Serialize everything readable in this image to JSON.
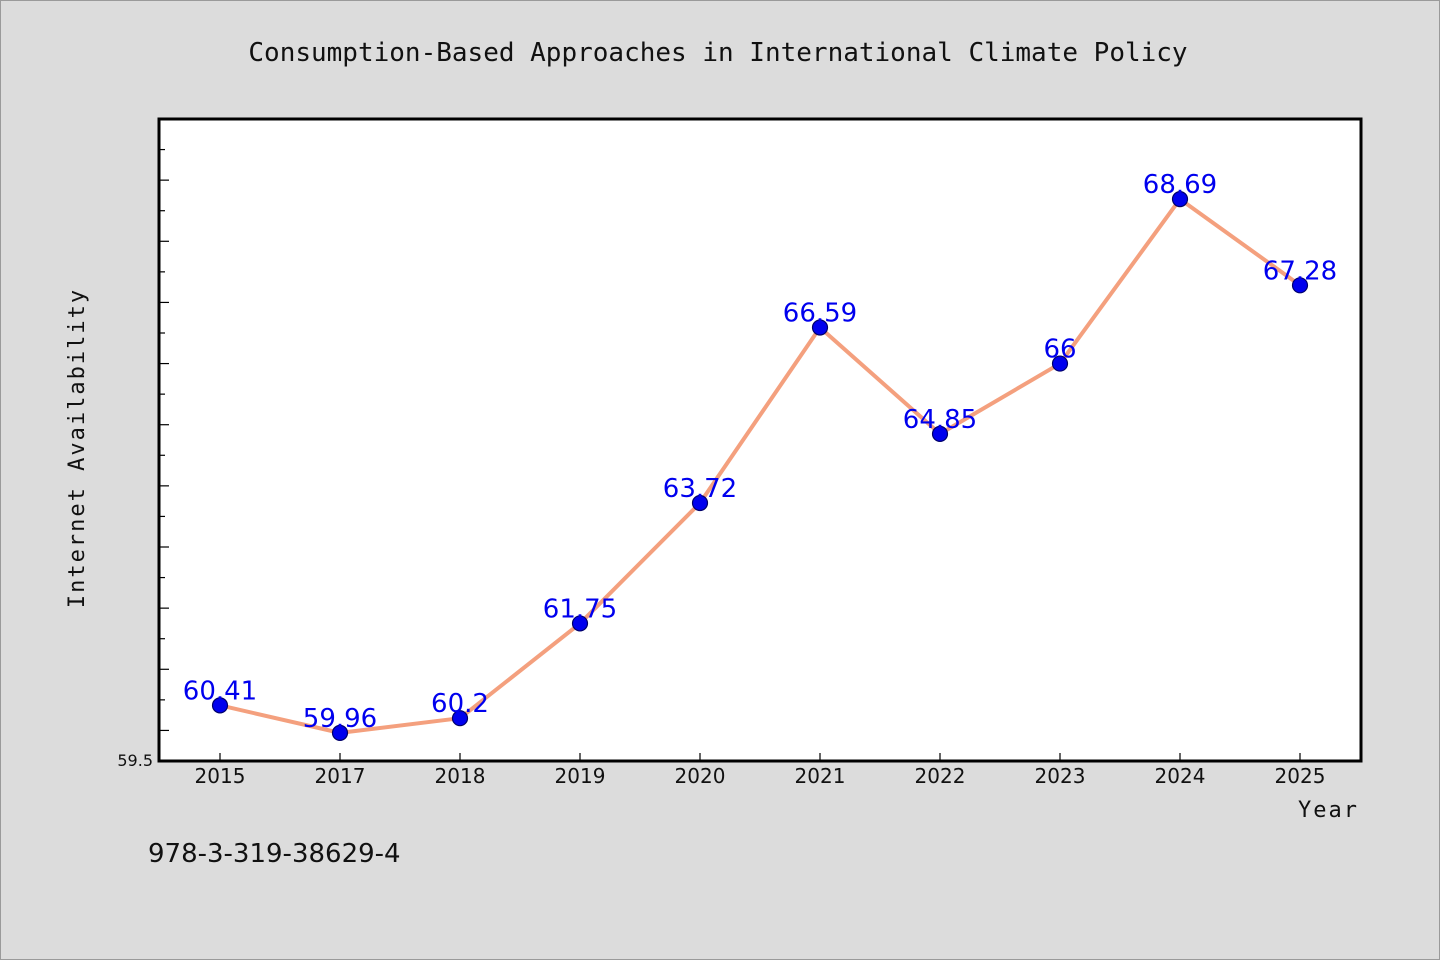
{
  "chart_data": {
    "type": "line",
    "title": "Consumption-Based Approaches in International Climate Policy",
    "xlabel": "Year",
    "ylabel": "Internet Availability",
    "categories": [
      "2015",
      "2017",
      "2018",
      "2019",
      "2020",
      "2021",
      "2022",
      "2023",
      "2024",
      "2025"
    ],
    "series": [
      {
        "values": [
          60.41,
          59.96,
          60.2,
          61.75,
          63.72,
          66.59,
          64.85,
          66,
          68.69,
          67.28
        ],
        "labels": [
          "60.41",
          "59.96",
          "60.2",
          "61.75",
          "63.72",
          "66.59",
          "64.85",
          "66",
          "68.69",
          "67.28"
        ]
      }
    ],
    "ylim": [
      59.5,
      70.0
    ],
    "y_tick_labels": [
      "59.5"
    ],
    "grid": false,
    "line_color": "#f4a07e",
    "marker_color": "#0000ee",
    "label_color": "#0000ee"
  },
  "footer": {
    "code": "978-3-319-38629-4"
  }
}
